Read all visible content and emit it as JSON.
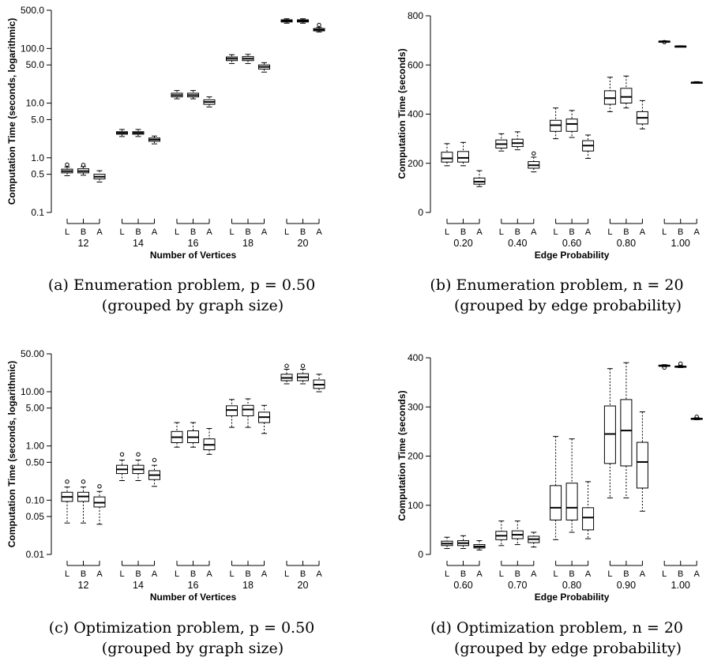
{
  "captions": [
    {
      "line1": "(a) Enumeration problem, p = 0.50",
      "line2": "(grouped by graph size)"
    },
    {
      "line1": "(b) Enumeration problem, n = 20",
      "line2": "(grouped by edge probability)"
    },
    {
      "line1": "(c) Optimization problem, p = 0.50",
      "line2": "(grouped by graph size)"
    },
    {
      "line1": "(d) Optimization problem, n = 20",
      "line2": "(grouped by edge probability)"
    }
  ],
  "chart_data": [
    {
      "type": "box",
      "xlabel": "Number of Vertices",
      "ylabel": "Computation Time (seconds, logarithmic)",
      "yscale": "log",
      "ylim": [
        0.1,
        500
      ],
      "yticks": [
        0.1,
        0.5,
        1,
        5,
        10,
        50,
        100,
        500
      ],
      "ytick_labels": [
        "0.1",
        "0.5",
        "1.0",
        "5.0",
        "10.0",
        "50.0",
        "100.0",
        "500.0"
      ],
      "subcategories": [
        "L",
        "B",
        "A"
      ],
      "groups": [
        {
          "label": "12",
          "boxes": [
            {
              "whislo": 0.47,
              "q1": 0.53,
              "med": 0.57,
              "q3": 0.62,
              "whishi": 0.68,
              "fliers": [
                0.75
              ]
            },
            {
              "whislo": 0.48,
              "q1": 0.53,
              "med": 0.57,
              "q3": 0.63,
              "whishi": 0.69,
              "fliers": [
                0.74
              ]
            },
            {
              "whislo": 0.36,
              "q1": 0.41,
              "med": 0.45,
              "q3": 0.5,
              "whishi": 0.58,
              "fliers": []
            }
          ]
        },
        {
          "label": "14",
          "boxes": [
            {
              "whislo": 2.45,
              "q1": 2.7,
              "med": 2.85,
              "q3": 3.0,
              "whishi": 3.3,
              "fliers": []
            },
            {
              "whislo": 2.45,
              "q1": 2.7,
              "med": 2.85,
              "q3": 3.0,
              "whishi": 3.3,
              "fliers": []
            },
            {
              "whislo": 1.8,
              "q1": 2.0,
              "med": 2.15,
              "q3": 2.3,
              "whishi": 2.5,
              "fliers": []
            }
          ]
        },
        {
          "label": "16",
          "boxes": [
            {
              "whislo": 12.0,
              "q1": 13.0,
              "med": 14.0,
              "q3": 15.2,
              "whishi": 17.0,
              "fliers": []
            },
            {
              "whislo": 12.0,
              "q1": 13.0,
              "med": 14.0,
              "q3": 15.2,
              "whishi": 17.0,
              "fliers": []
            },
            {
              "whislo": 8.5,
              "q1": 9.5,
              "med": 10.5,
              "q3": 11.5,
              "whishi": 13.0,
              "fliers": []
            }
          ]
        },
        {
          "label": "18",
          "boxes": [
            {
              "whislo": 53,
              "q1": 60,
              "med": 65,
              "q3": 70,
              "whishi": 77,
              "fliers": []
            },
            {
              "whislo": 53,
              "q1": 60,
              "med": 65,
              "q3": 71,
              "whishi": 78,
              "fliers": []
            },
            {
              "whislo": 37,
              "q1": 42,
              "med": 46,
              "q3": 50,
              "whishi": 55,
              "fliers": []
            }
          ]
        },
        {
          "label": "20",
          "boxes": [
            {
              "whislo": 290,
              "q1": 305,
              "med": 320,
              "q3": 335,
              "whishi": 350,
              "fliers": []
            },
            {
              "whislo": 290,
              "q1": 305,
              "med": 320,
              "q3": 335,
              "whishi": 350,
              "fliers": []
            },
            {
              "whislo": 200,
              "q1": 210,
              "med": 220,
              "q3": 232,
              "whishi": 245,
              "fliers": [
                270
              ]
            }
          ]
        }
      ]
    },
    {
      "type": "box",
      "xlabel": "Edge Probability",
      "ylabel": "Computation Time (seconds)",
      "yscale": "linear",
      "ylim": [
        0,
        800
      ],
      "yticks": [
        0,
        200,
        400,
        600,
        800
      ],
      "ytick_labels": [
        "0",
        "200",
        "400",
        "600",
        "800"
      ],
      "subcategories": [
        "L",
        "B",
        "A"
      ],
      "groups": [
        {
          "label": "0.20",
          "boxes": [
            {
              "whislo": 190,
              "q1": 205,
              "med": 220,
              "q3": 245,
              "whishi": 280,
              "fliers": []
            },
            {
              "whislo": 190,
              "q1": 205,
              "med": 222,
              "q3": 248,
              "whishi": 285,
              "fliers": []
            },
            {
              "whislo": 105,
              "q1": 115,
              "med": 125,
              "q3": 140,
              "whishi": 170,
              "fliers": []
            }
          ]
        },
        {
          "label": "0.40",
          "boxes": [
            {
              "whislo": 250,
              "q1": 262,
              "med": 278,
              "q3": 295,
              "whishi": 320,
              "fliers": []
            },
            {
              "whislo": 255,
              "q1": 268,
              "med": 282,
              "q3": 298,
              "whishi": 328,
              "fliers": []
            },
            {
              "whislo": 165,
              "q1": 180,
              "med": 192,
              "q3": 207,
              "whishi": 225,
              "fliers": [
                240
              ]
            }
          ]
        },
        {
          "label": "0.60",
          "boxes": [
            {
              "whislo": 300,
              "q1": 330,
              "med": 355,
              "q3": 375,
              "whishi": 425,
              "fliers": []
            },
            {
              "whislo": 305,
              "q1": 330,
              "med": 360,
              "q3": 380,
              "whishi": 415,
              "fliers": []
            },
            {
              "whislo": 220,
              "q1": 250,
              "med": 272,
              "q3": 292,
              "whishi": 315,
              "fliers": []
            }
          ]
        },
        {
          "label": "0.80",
          "boxes": [
            {
              "whislo": 410,
              "q1": 440,
              "med": 465,
              "q3": 495,
              "whishi": 550,
              "fliers": []
            },
            {
              "whislo": 425,
              "q1": 445,
              "med": 470,
              "q3": 505,
              "whishi": 555,
              "fliers": []
            },
            {
              "whislo": 340,
              "q1": 360,
              "med": 385,
              "q3": 410,
              "whishi": 455,
              "fliers": []
            }
          ]
        },
        {
          "label": "1.00",
          "boxes": [
            {
              "whislo": 694,
              "q1": 695,
              "med": 696,
              "q3": 697,
              "whishi": 698,
              "fliers": [
                693
              ]
            },
            {
              "whislo": 674,
              "q1": 675,
              "med": 676,
              "q3": 677,
              "whishi": 678,
              "fliers": []
            },
            {
              "whislo": 526,
              "q1": 528,
              "med": 529,
              "q3": 530,
              "whishi": 532,
              "fliers": []
            }
          ]
        }
      ]
    },
    {
      "type": "box",
      "xlabel": "Number of Vertices",
      "ylabel": "Computation Time (seconds, logarithmic)",
      "yscale": "log",
      "ylim": [
        0.01,
        50
      ],
      "yticks": [
        0.01,
        0.05,
        0.1,
        0.5,
        1,
        5,
        10,
        50
      ],
      "ytick_labels": [
        "0.01",
        "0.05",
        "0.10",
        "0.50",
        "1.00",
        "5.00",
        "10.00",
        "50.00"
      ],
      "subcategories": [
        "L",
        "B",
        "A"
      ],
      "groups": [
        {
          "label": "12",
          "boxes": [
            {
              "whislo": 0.038,
              "q1": 0.095,
              "med": 0.115,
              "q3": 0.14,
              "whishi": 0.175,
              "fliers": [
                0.22
              ]
            },
            {
              "whislo": 0.038,
              "q1": 0.095,
              "med": 0.117,
              "q3": 0.14,
              "whishi": 0.175,
              "fliers": [
                0.22
              ]
            },
            {
              "whislo": 0.036,
              "q1": 0.075,
              "med": 0.09,
              "q3": 0.115,
              "whishi": 0.145,
              "fliers": [
                0.18
              ]
            }
          ]
        },
        {
          "label": "14",
          "boxes": [
            {
              "whislo": 0.23,
              "q1": 0.31,
              "med": 0.37,
              "q3": 0.44,
              "whishi": 0.55,
              "fliers": [
                0.7
              ]
            },
            {
              "whislo": 0.23,
              "q1": 0.31,
              "med": 0.37,
              "q3": 0.44,
              "whishi": 0.55,
              "fliers": [
                0.7
              ]
            },
            {
              "whislo": 0.18,
              "q1": 0.24,
              "med": 0.29,
              "q3": 0.35,
              "whishi": 0.44,
              "fliers": [
                0.55
              ]
            }
          ]
        },
        {
          "label": "16",
          "boxes": [
            {
              "whislo": 0.95,
              "q1": 1.15,
              "med": 1.45,
              "q3": 1.85,
              "whishi": 2.7,
              "fliers": []
            },
            {
              "whislo": 0.95,
              "q1": 1.15,
              "med": 1.45,
              "q3": 1.9,
              "whishi": 2.7,
              "fliers": []
            },
            {
              "whislo": 0.7,
              "q1": 0.85,
              "med": 1.05,
              "q3": 1.35,
              "whishi": 2.1,
              "fliers": []
            }
          ]
        },
        {
          "label": "18",
          "boxes": [
            {
              "whislo": 2.2,
              "q1": 3.6,
              "med": 4.6,
              "q3": 5.5,
              "whishi": 7.2,
              "fliers": []
            },
            {
              "whislo": 2.2,
              "q1": 3.6,
              "med": 4.7,
              "q3": 5.6,
              "whishi": 7.4,
              "fliers": []
            },
            {
              "whislo": 1.7,
              "q1": 2.7,
              "med": 3.4,
              "q3": 4.2,
              "whishi": 5.6,
              "fliers": []
            }
          ]
        },
        {
          "label": "20",
          "boxes": [
            {
              "whislo": 14,
              "q1": 16,
              "med": 18,
              "q3": 21,
              "whishi": 26,
              "fliers": [
                30
              ]
            },
            {
              "whislo": 14,
              "q1": 16,
              "med": 18.5,
              "q3": 21.5,
              "whishi": 26,
              "fliers": [
                30
              ]
            },
            {
              "whislo": 10,
              "q1": 11.5,
              "med": 13.5,
              "q3": 16.5,
              "whishi": 21,
              "fliers": []
            }
          ]
        }
      ]
    },
    {
      "type": "box",
      "xlabel": "Edge Probability",
      "ylabel": "Computation Time (seconds)",
      "yscale": "linear",
      "ylim": [
        0,
        400
      ],
      "yticks": [
        0,
        100,
        200,
        300,
        400
      ],
      "ytick_labels": [
        "0",
        "100",
        "200",
        "300",
        "400"
      ],
      "subcategories": [
        "L",
        "B",
        "A"
      ],
      "groups": [
        {
          "label": "0.60",
          "boxes": [
            {
              "whislo": 12,
              "q1": 18,
              "med": 22,
              "q3": 27,
              "whishi": 35,
              "fliers": []
            },
            {
              "whislo": 12,
              "q1": 18,
              "med": 23,
              "q3": 28,
              "whishi": 38,
              "fliers": []
            },
            {
              "whislo": 9,
              "q1": 13,
              "med": 16,
              "q3": 20,
              "whishi": 28,
              "fliers": []
            }
          ]
        },
        {
          "label": "0.70",
          "boxes": [
            {
              "whislo": 18,
              "q1": 30,
              "med": 38,
              "q3": 47,
              "whishi": 68,
              "fliers": []
            },
            {
              "whislo": 20,
              "q1": 32,
              "med": 40,
              "q3": 48,
              "whishi": 68,
              "fliers": []
            },
            {
              "whislo": 15,
              "q1": 24,
              "med": 31,
              "q3": 37,
              "whishi": 45,
              "fliers": []
            }
          ]
        },
        {
          "label": "0.80",
          "boxes": [
            {
              "whislo": 30,
              "q1": 70,
              "med": 95,
              "q3": 140,
              "whishi": 240,
              "fliers": []
            },
            {
              "whislo": 45,
              "q1": 70,
              "med": 95,
              "q3": 145,
              "whishi": 235,
              "fliers": []
            },
            {
              "whislo": 32,
              "q1": 50,
              "med": 75,
              "q3": 95,
              "whishi": 148,
              "fliers": []
            }
          ]
        },
        {
          "label": "0.90",
          "boxes": [
            {
              "whislo": 115,
              "q1": 185,
              "med": 245,
              "q3": 302,
              "whishi": 378,
              "fliers": []
            },
            {
              "whislo": 115,
              "q1": 180,
              "med": 252,
              "q3": 315,
              "whishi": 390,
              "fliers": []
            },
            {
              "whislo": 88,
              "q1": 135,
              "med": 188,
              "q3": 228,
              "whishi": 290,
              "fliers": []
            }
          ]
        },
        {
          "label": "1.00",
          "boxes": [
            {
              "whislo": 382,
              "q1": 383,
              "med": 384,
              "q3": 385,
              "whishi": 386,
              "fliers": [
                380
              ]
            },
            {
              "whislo": 380,
              "q1": 381,
              "med": 382,
              "q3": 383,
              "whishi": 384,
              "fliers": [
                388
              ]
            },
            {
              "whislo": 274,
              "q1": 275,
              "med": 276,
              "q3": 277,
              "whishi": 278,
              "fliers": [
                280
              ]
            }
          ]
        }
      ]
    }
  ]
}
